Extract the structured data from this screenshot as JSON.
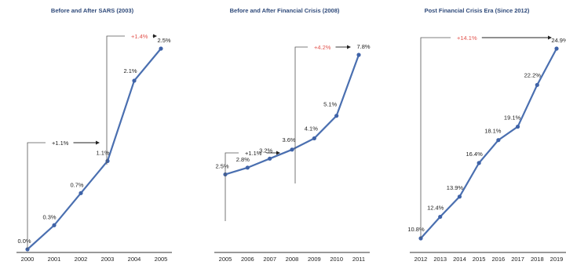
{
  "colors": {
    "line": "#4a6fb0",
    "marker": "#3f63a8",
    "text": "#222222",
    "annotation_red": "#e2554f",
    "title": "#2f4a7a",
    "bracket": "#555555",
    "baseline": "#333333"
  },
  "chart_data": [
    {
      "type": "line",
      "title": "Before and After SARS (2003)",
      "categories": [
        "2000",
        "2001",
        "2002",
        "2003",
        "2004",
        "2005"
      ],
      "values": [
        0.0,
        0.3,
        0.7,
        1.1,
        2.1,
        2.5
      ],
      "data_labels": [
        "0.0%",
        "0.3%",
        "0.7%",
        "1.1%",
        "2.1%",
        "2.5%"
      ],
      "ylim": [
        0,
        2.5
      ],
      "annotations": [
        {
          "text": "+1.1%",
          "from": "2000",
          "to": "2003",
          "color": "dark"
        },
        {
          "text": "+1.4%",
          "from": "2003",
          "to": "2005",
          "color": "red"
        }
      ]
    },
    {
      "type": "line",
      "title": "Before and After Financial Crisis (2008)",
      "categories": [
        "2005",
        "2006",
        "2007",
        "2008",
        "2009",
        "2010",
        "2011"
      ],
      "values": [
        2.5,
        2.8,
        3.2,
        3.6,
        4.1,
        5.1,
        7.8
      ],
      "data_labels": [
        "2.5%",
        "2.8%",
        "3.2%",
        "3.6%",
        "4.1%",
        "5.1%",
        "7.8%"
      ],
      "ylim": [
        0.5,
        7.8
      ],
      "annotations": [
        {
          "text": "+1.1%",
          "from": "2005",
          "to": "2008",
          "color": "dark"
        },
        {
          "text": "+4.2%",
          "from": "2008",
          "to": "2011",
          "color": "red"
        }
      ]
    },
    {
      "type": "line",
      "title": "Post Financial Crisis Era (Since 2012)",
      "categories": [
        "2012",
        "2013",
        "2014",
        "2015",
        "2016",
        "2017",
        "2018",
        "2019"
      ],
      "values": [
        10.8,
        12.4,
        13.9,
        16.4,
        18.1,
        19.1,
        22.2,
        24.9
      ],
      "data_labels": [
        "10.8%",
        "12.4%",
        "13.9%",
        "16.4%",
        "18.1%",
        "19.1%",
        "22.2%",
        "24.9%"
      ],
      "ylim": [
        10.8,
        24.9
      ],
      "annotations": [
        {
          "text": "+14.1%",
          "from": "2012",
          "to": "2019",
          "color": "red"
        }
      ]
    }
  ]
}
